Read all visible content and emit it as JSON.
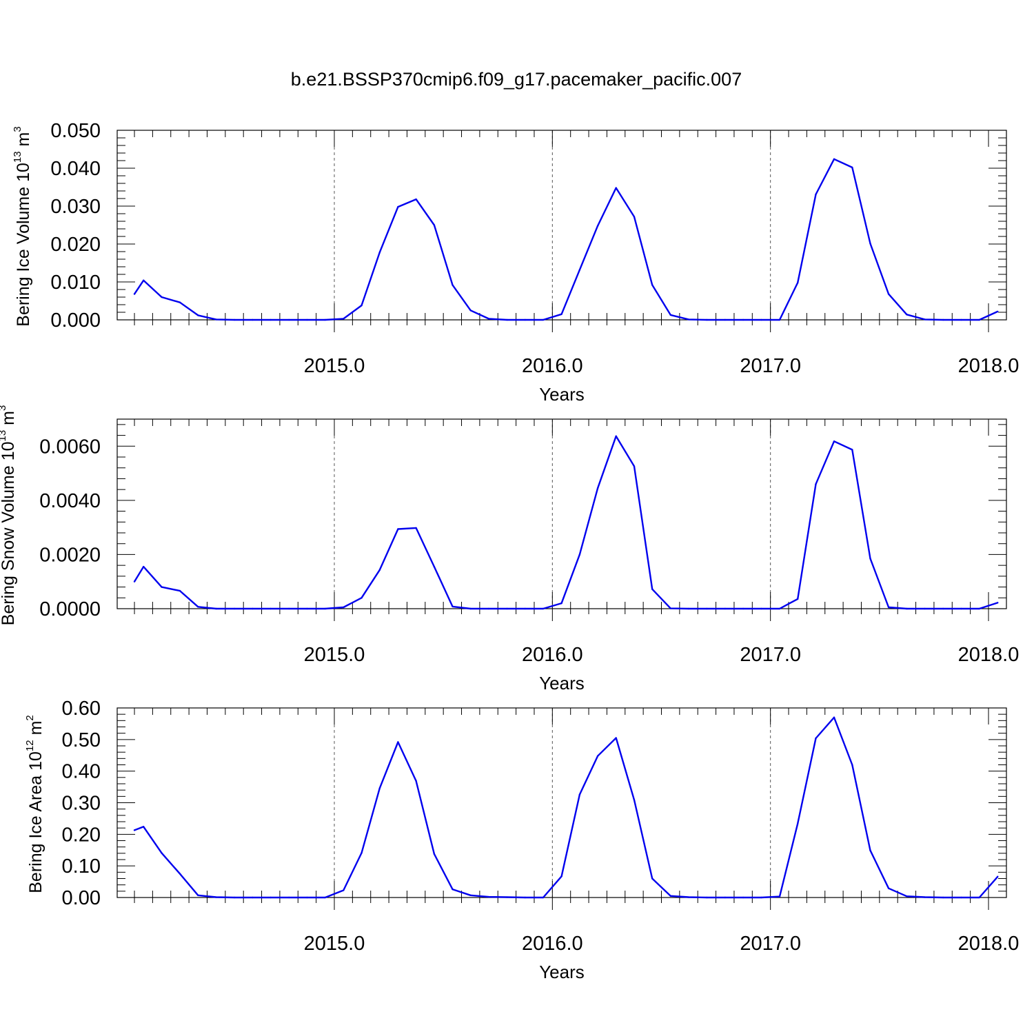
{
  "title": "b.e21.BSSP370cmip6.f09_g17.pacemaker_pacific.007",
  "chart_data": [
    {
      "type": "line",
      "ylabel": "Bering Ice Volume 10",
      "ylabel_exp": "13",
      "ylabel_unit": " m",
      "ylabel_unit_exp": "3",
      "xlabel": "Years",
      "xlim": [
        2014.042,
        2018.083
      ],
      "ylim": [
        0,
        0.05
      ],
      "yticks": [
        0,
        0.01,
        0.02,
        0.03,
        0.04,
        0.05
      ],
      "ytick_labels": [
        "0.000",
        "0.010",
        "0.020",
        "0.030",
        "0.040",
        "0.050"
      ],
      "xticks": [
        2015.0,
        2016.0,
        2017.0,
        2018.0
      ],
      "xtick_labels": [
        "2015.0",
        "2016.0",
        "2017.0",
        "2018.0"
      ],
      "grid": "vertical dashed at major x ticks",
      "line_color": "#0000ee",
      "x": [
        2014.042,
        2014.125,
        2014.208,
        2014.292,
        2014.375,
        2014.458,
        2014.542,
        2014.625,
        2014.708,
        2014.792,
        2014.875,
        2014.958,
        2015.042,
        2015.125,
        2015.208,
        2015.292,
        2015.375,
        2015.458,
        2015.542,
        2015.625,
        2015.708,
        2015.792,
        2015.875,
        2015.958,
        2016.042,
        2016.125,
        2016.208,
        2016.292,
        2016.375,
        2016.458,
        2016.542,
        2016.625,
        2016.708,
        2016.792,
        2016.875,
        2016.958,
        2017.042,
        2017.125,
        2017.208,
        2017.292,
        2017.375,
        2017.458,
        2017.542,
        2017.625,
        2017.708,
        2017.792,
        2017.875,
        2017.958,
        2018.042
      ],
      "values": [
        0.0068,
        0.0104,
        0.006,
        0.0046,
        0.0012,
        0.0001,
        0.0,
        0.0,
        0.0,
        0.0,
        0.0,
        0.0,
        0.0003,
        0.0038,
        0.0178,
        0.0298,
        0.0318,
        0.025,
        0.0092,
        0.0025,
        0.0003,
        0.0,
        0.0,
        0.0,
        0.0015,
        0.0132,
        0.0248,
        0.0348,
        0.0272,
        0.0092,
        0.0013,
        0.0001,
        0.0,
        0.0,
        0.0,
        0.0,
        0.0,
        0.0098,
        0.0331,
        0.0424,
        0.0402,
        0.0201,
        0.0068,
        0.0014,
        0.0001,
        0.0,
        0.0,
        0.0,
        0.0022
      ]
    },
    {
      "type": "line",
      "ylabel": "Bering Snow Volume 10",
      "ylabel_exp": "13",
      "ylabel_unit": " m",
      "ylabel_unit_exp": "3",
      "xlabel": "Years",
      "xlim": [
        2014.042,
        2018.083
      ],
      "ylim": [
        0,
        0.007
      ],
      "yticks": [
        0,
        0.002,
        0.004,
        0.006
      ],
      "ytick_labels": [
        "0.0000",
        "0.0020",
        "0.0040",
        "0.0060"
      ],
      "xticks": [
        2015.0,
        2016.0,
        2017.0,
        2018.0
      ],
      "xtick_labels": [
        "2015.0",
        "2016.0",
        "2017.0",
        "2018.0"
      ],
      "grid": "vertical dashed at major x ticks",
      "line_color": "#0000ee",
      "x": [
        2014.042,
        2014.125,
        2014.208,
        2014.292,
        2014.375,
        2014.458,
        2014.542,
        2014.625,
        2014.708,
        2014.792,
        2014.875,
        2014.958,
        2015.042,
        2015.125,
        2015.208,
        2015.292,
        2015.375,
        2015.458,
        2015.542,
        2015.625,
        2015.708,
        2015.792,
        2015.875,
        2015.958,
        2016.042,
        2016.125,
        2016.208,
        2016.292,
        2016.375,
        2016.458,
        2016.542,
        2016.625,
        2016.708,
        2016.792,
        2016.875,
        2016.958,
        2017.042,
        2017.125,
        2017.208,
        2017.292,
        2017.375,
        2017.458,
        2017.542,
        2017.625,
        2017.708,
        2017.792,
        2017.875,
        2017.958,
        2018.042
      ],
      "values": [
        0.001,
        0.00155,
        0.0008,
        0.00066,
        7e-05,
        0.0,
        0.0,
        0.0,
        0.0,
        0.0,
        0.0,
        0.0,
        5e-05,
        0.0004,
        0.00143,
        0.00294,
        0.00298,
        0.00155,
        8e-05,
        0.0,
        0.0,
        0.0,
        0.0,
        0.0,
        0.0002,
        0.002,
        0.00445,
        0.00637,
        0.00526,
        0.00072,
        1e-05,
        0.0,
        0.0,
        0.0,
        0.0,
        0.0,
        0.0,
        0.00036,
        0.0046,
        0.00618,
        0.00587,
        0.00185,
        5e-05,
        0.0,
        0.0,
        0.0,
        0.0,
        0.0,
        0.00022
      ]
    },
    {
      "type": "line",
      "ylabel": "Bering Ice Area 10",
      "ylabel_exp": "12",
      "ylabel_unit": " m",
      "ylabel_unit_exp": "2",
      "xlabel": "Years",
      "xlim": [
        2014.042,
        2018.083
      ],
      "ylim": [
        0,
        0.6
      ],
      "yticks": [
        0,
        0.1,
        0.2,
        0.3,
        0.4,
        0.5,
        0.6
      ],
      "ytick_labels": [
        "0.00",
        "0.10",
        "0.20",
        "0.30",
        "0.40",
        "0.50",
        "0.60"
      ],
      "xticks": [
        2015.0,
        2016.0,
        2017.0,
        2018.0
      ],
      "xtick_labels": [
        "2015.0",
        "2016.0",
        "2017.0",
        "2018.0"
      ],
      "grid": "vertical dashed at major x ticks",
      "line_color": "#0000ee",
      "x": [
        2014.042,
        2014.125,
        2014.208,
        2014.292,
        2014.375,
        2014.458,
        2014.542,
        2014.625,
        2014.708,
        2014.792,
        2014.875,
        2014.958,
        2015.042,
        2015.125,
        2015.208,
        2015.292,
        2015.375,
        2015.458,
        2015.542,
        2015.625,
        2015.708,
        2015.792,
        2015.875,
        2015.958,
        2016.042,
        2016.125,
        2016.208,
        2016.292,
        2016.375,
        2016.458,
        2016.542,
        2016.625,
        2016.708,
        2016.792,
        2016.875,
        2016.958,
        2017.042,
        2017.125,
        2017.208,
        2017.292,
        2017.375,
        2017.458,
        2017.542,
        2017.625,
        2017.708,
        2017.792,
        2017.875,
        2017.958,
        2018.042
      ],
      "values": [
        0.213,
        0.224,
        0.141,
        0.075,
        0.007,
        0.001,
        0.0,
        0.0,
        0.0,
        0.0,
        0.0,
        0.0,
        0.023,
        0.141,
        0.346,
        0.492,
        0.369,
        0.138,
        0.026,
        0.007,
        0.002,
        0.001,
        0.0,
        0.0,
        0.067,
        0.326,
        0.448,
        0.505,
        0.309,
        0.06,
        0.005,
        0.001,
        0.0,
        0.0,
        0.0,
        0.0,
        0.003,
        0.234,
        0.504,
        0.57,
        0.42,
        0.149,
        0.029,
        0.004,
        0.001,
        0.0,
        0.0,
        0.0,
        0.066
      ]
    }
  ]
}
